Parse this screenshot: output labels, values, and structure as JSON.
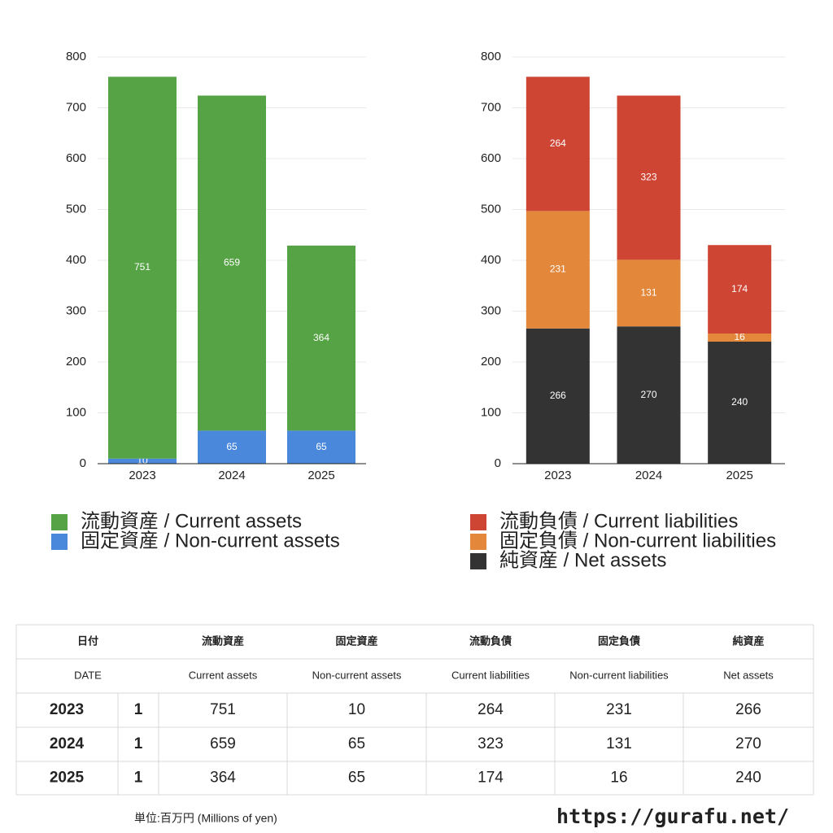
{
  "chart_data": [
    {
      "type": "bar",
      "stacked": true,
      "categories": [
        "2023",
        "2024",
        "2025"
      ],
      "series": [
        {
          "name": "流動資産 / Current assets",
          "color": "#55a344",
          "values": [
            751,
            659,
            364
          ]
        },
        {
          "name": "固定資産 / Non-current assets",
          "color": "#4a88dc",
          "values": [
            10,
            65,
            65
          ]
        }
      ],
      "ylim": [
        0,
        800
      ],
      "yticks": [
        0,
        100,
        200,
        300,
        400,
        500,
        600,
        700,
        800
      ],
      "grid": true
    },
    {
      "type": "bar",
      "stacked": true,
      "categories": [
        "2023",
        "2024",
        "2025"
      ],
      "series": [
        {
          "name": "流動負債 / Current liabilities",
          "color": "#cf4534",
          "values": [
            264,
            323,
            174
          ]
        },
        {
          "name": "固定負債 / Non-current liabilities",
          "color": "#e3873a",
          "values": [
            231,
            131,
            16
          ]
        },
        {
          "name": "純資産 / Net assets",
          "color": "#333333",
          "values": [
            266,
            270,
            240
          ]
        }
      ],
      "ylim": [
        0,
        800
      ],
      "yticks": [
        0,
        100,
        200,
        300,
        400,
        500,
        600,
        700,
        800
      ],
      "grid": true
    }
  ],
  "table": {
    "date_header": [
      "日付",
      "DATE"
    ],
    "headers_ja": [
      "流動資産",
      "固定資産",
      "流動負債",
      "固定負債",
      "純資産"
    ],
    "headers_en": [
      "Current assets",
      "Non-current assets",
      "Current liabilities",
      "Non-current liabilities",
      "Net assets"
    ],
    "months": [
      1,
      1,
      1
    ]
  },
  "footer": {
    "unit": "単位:百万円 (Millions of yen)",
    "url": "https://gurafu.net/"
  }
}
